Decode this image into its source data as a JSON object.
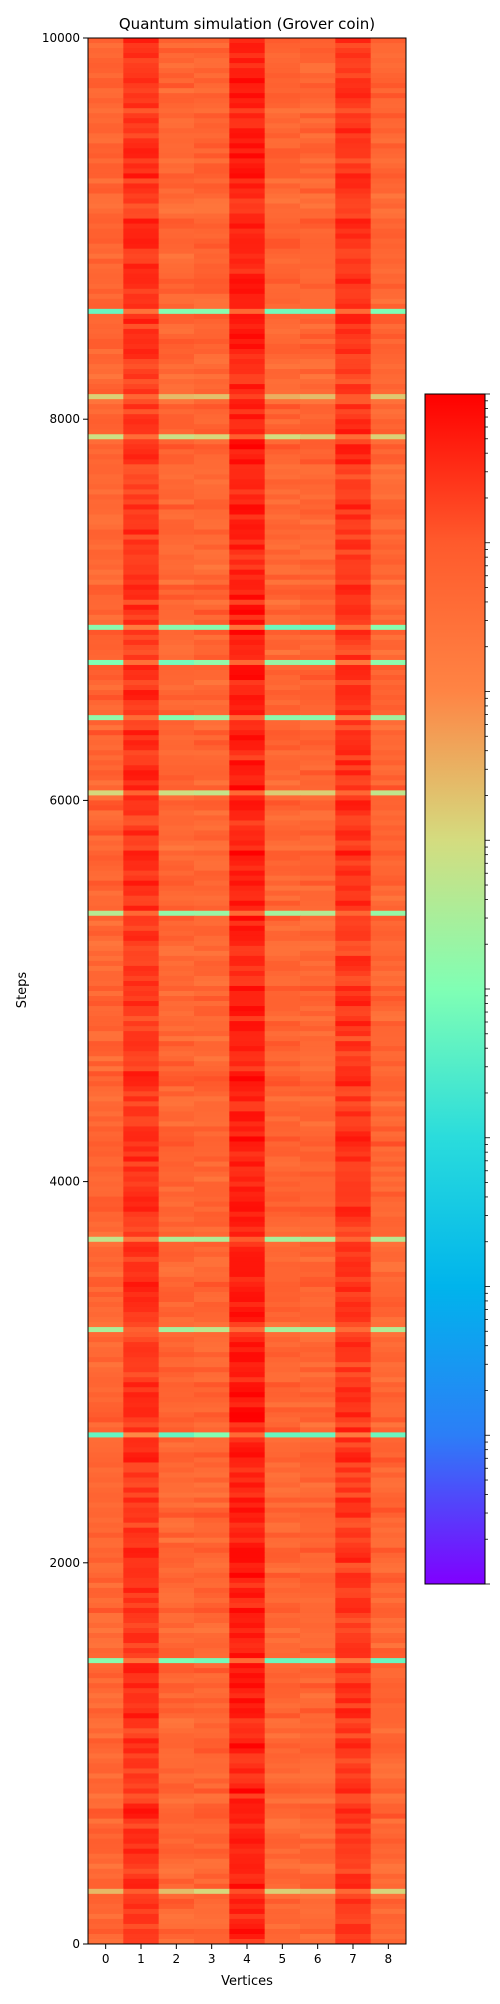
{
  "chart_data": {
    "type": "heatmap",
    "title": "Quantum simulation (Grover coin)",
    "xlabel": "Vertices",
    "ylabel": "Steps",
    "x_categories": [
      "0",
      "1",
      "2",
      "3",
      "4",
      "5",
      "6",
      "7",
      "8"
    ],
    "xlim": [
      -0.5,
      8.5
    ],
    "ylim": [
      0,
      10000
    ],
    "y_ticks": [
      0,
      2000,
      4000,
      6000,
      8000,
      10000
    ],
    "y_tick_labels": [
      "0",
      "2000",
      "4000",
      "6000",
      "8000",
      "10000"
    ],
    "steps_total": 10000,
    "colormap": "rainbow",
    "colormap_stops": [
      "#8000ff",
      "#2c7ef7",
      "#00b4ec",
      "#2adcdc",
      "#80ffb4",
      "#d4dc7f",
      "#ff8444",
      "#ff5a2c",
      "#ff0000"
    ],
    "colorbar_scale": "log",
    "column_mean_intensity": [
      0.84,
      0.925,
      0.84,
      0.84,
      0.955,
      0.84,
      0.84,
      0.925,
      0.84
    ],
    "grid": false,
    "legend": "colorbar-right"
  }
}
